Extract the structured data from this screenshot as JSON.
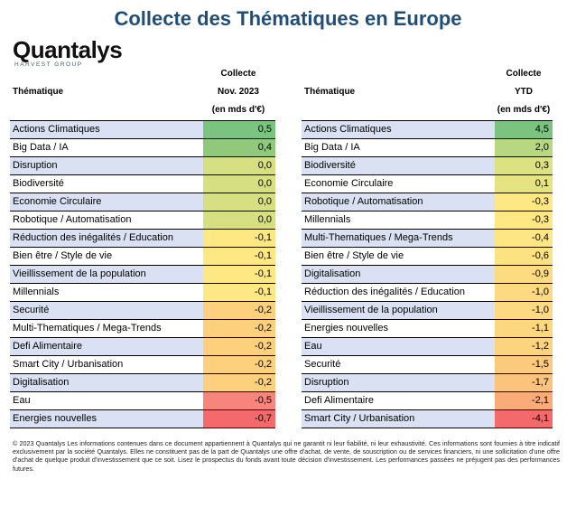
{
  "title": "Collecte des Thématiques en Europe",
  "logo": {
    "main": "Quantalys",
    "sub": "HARVEST GROUP"
  },
  "left": {
    "label": "Thématique",
    "col1": "Collecte",
    "col2": "Nov. 2023",
    "col3": "(en mds d'€)",
    "rows": [
      {
        "name": "Actions Climatiques",
        "value": "0,5",
        "color": "#7bc47f"
      },
      {
        "name": "Big Data / IA",
        "value": "0,4",
        "color": "#90c97b"
      },
      {
        "name": "Disruption",
        "value": "0,0",
        "color": "#d6df81"
      },
      {
        "name": "Biodiversité",
        "value": "0,0",
        "color": "#d6df81"
      },
      {
        "name": "Economie Circulaire",
        "value": "0,0",
        "color": "#d6df81"
      },
      {
        "name": "Robotique / Automatisation",
        "value": "0,0",
        "color": "#d6df81"
      },
      {
        "name": "Réduction des inégalités / Education",
        "value": "-0,1",
        "color": "#fde883"
      },
      {
        "name": "Bien être / Style de vie",
        "value": "-0,1",
        "color": "#fde883"
      },
      {
        "name": "Vieillissement de la population",
        "value": "-0,1",
        "color": "#fde883"
      },
      {
        "name": "Millennials",
        "value": "-0,1",
        "color": "#fde883"
      },
      {
        "name": "Securité",
        "value": "-0,2",
        "color": "#fcd07d"
      },
      {
        "name": "Multi-Thematiques / Mega-Trends",
        "value": "-0,2",
        "color": "#fcd07d"
      },
      {
        "name": "Defi Alimentaire",
        "value": "-0,2",
        "color": "#fcd07d"
      },
      {
        "name": "Smart City / Urbanisation",
        "value": "-0,2",
        "color": "#fcd07d"
      },
      {
        "name": "Digitalisation",
        "value": "-0,2",
        "color": "#fcd07d"
      },
      {
        "name": "Eau",
        "value": "-0,5",
        "color": "#f7857c"
      },
      {
        "name": "Energies nouvelles",
        "value": "-0,7",
        "color": "#f4696b"
      }
    ]
  },
  "right": {
    "label": "Thématique",
    "col1": "Collecte",
    "col2": "YTD",
    "col3": "(en mds d'€)",
    "rows": [
      {
        "name": "Actions Climatiques",
        "value": "4,5",
        "color": "#7bc47f"
      },
      {
        "name": "Big Data / IA",
        "value": "2,0",
        "color": "#b7d880"
      },
      {
        "name": "Biodiversité",
        "value": "0,3",
        "color": "#dce182"
      },
      {
        "name": "Economie Circulaire",
        "value": "0,1",
        "color": "#e6e382"
      },
      {
        "name": "Robotique / Automatisation",
        "value": "-0,3",
        "color": "#fde883"
      },
      {
        "name": "Millennials",
        "value": "-0,3",
        "color": "#fde883"
      },
      {
        "name": "Multi-Thematiques / Mega-Trends",
        "value": "-0,4",
        "color": "#fde683"
      },
      {
        "name": "Bien être / Style de vie",
        "value": "-0,6",
        "color": "#fde282"
      },
      {
        "name": "Digitalisation",
        "value": "-0,9",
        "color": "#fddc81"
      },
      {
        "name": "Réduction des inégalités / Education",
        "value": "-1,0",
        "color": "#fdd981"
      },
      {
        "name": "Vieillissement de la population",
        "value": "-1,0",
        "color": "#fdd981"
      },
      {
        "name": "Energies nouvelles",
        "value": "-1,1",
        "color": "#fdd780"
      },
      {
        "name": "Eau",
        "value": "-1,2",
        "color": "#fcd37f"
      },
      {
        "name": "Securité",
        "value": "-1,5",
        "color": "#fcca7d"
      },
      {
        "name": "Disruption",
        "value": "-1,7",
        "color": "#fbc37b"
      },
      {
        "name": "Defi Alimentaire",
        "value": "-2,1",
        "color": "#f9ab78"
      },
      {
        "name": "Smart City / Urbanisation",
        "value": "-4,1",
        "color": "#f4696b"
      }
    ]
  },
  "footer": "© 2023 Quantalys Les informations contenues dans ce document appartiennent à Quantalys qui ne garantit ni leur fiabilité, ni leur exhaustivité. Ces informations sont fournies à titre indicatif exclusivement par la société Quantalys. Elles ne constituent pas de la part de Quantalys une offre d'achat, de vente, de souscription ou de services financiers, ni une sollicitation d'une offre d'achat de quelque produit d'investissement que ce soit. Lisez le prospectus du fonds avant toute décision d'investissement. Les performances passées ne préjugent pas des performances futures."
}
